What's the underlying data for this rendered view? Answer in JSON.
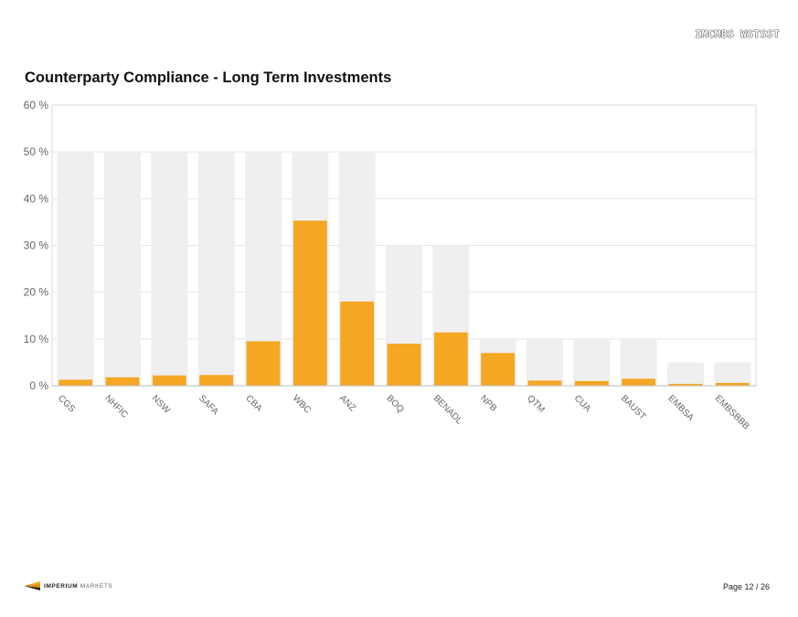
{
  "header": {
    "code": "IMCMBS WSTSST"
  },
  "footer": {
    "brand_bold": "IMPERIUM",
    "brand_light": "MARKETS",
    "page_label": "Page 12 / 26"
  },
  "colors": {
    "actual": "#f5a623",
    "limit": "#efefef",
    "grid": "#e6e6e6",
    "axis_text": "#666666"
  },
  "chart_data": {
    "type": "bar",
    "title": "Counterparty Compliance - Long Term Investments",
    "xlabel": "",
    "ylabel": "",
    "ylim": [
      0,
      60
    ],
    "yticks": [
      0,
      10,
      20,
      30,
      40,
      50,
      60
    ],
    "ytick_labels": [
      "0 %",
      "10 %",
      "20 %",
      "30 %",
      "40 %",
      "50 %",
      "60 %"
    ],
    "grid": true,
    "categories": [
      "CGS",
      "NHFIC",
      "NSW",
      "SAFA",
      "CBA",
      "WBC",
      "ANZ",
      "BOQ",
      "BENADL",
      "NPB",
      "QTM",
      "CUA",
      "BAUST",
      "EMBSA",
      "EMBSBBB"
    ],
    "series": [
      {
        "values": [
          50,
          50,
          50,
          50,
          50,
          50,
          50,
          30,
          30,
          10,
          10,
          10,
          10,
          5,
          5
        ]
      },
      {
        "values": [
          1.3,
          1.8,
          2.2,
          2.3,
          9.5,
          35.3,
          18.0,
          9.0,
          11.4,
          7.0,
          1.1,
          1.0,
          1.5,
          0.4,
          0.6
        ]
      }
    ]
  }
}
